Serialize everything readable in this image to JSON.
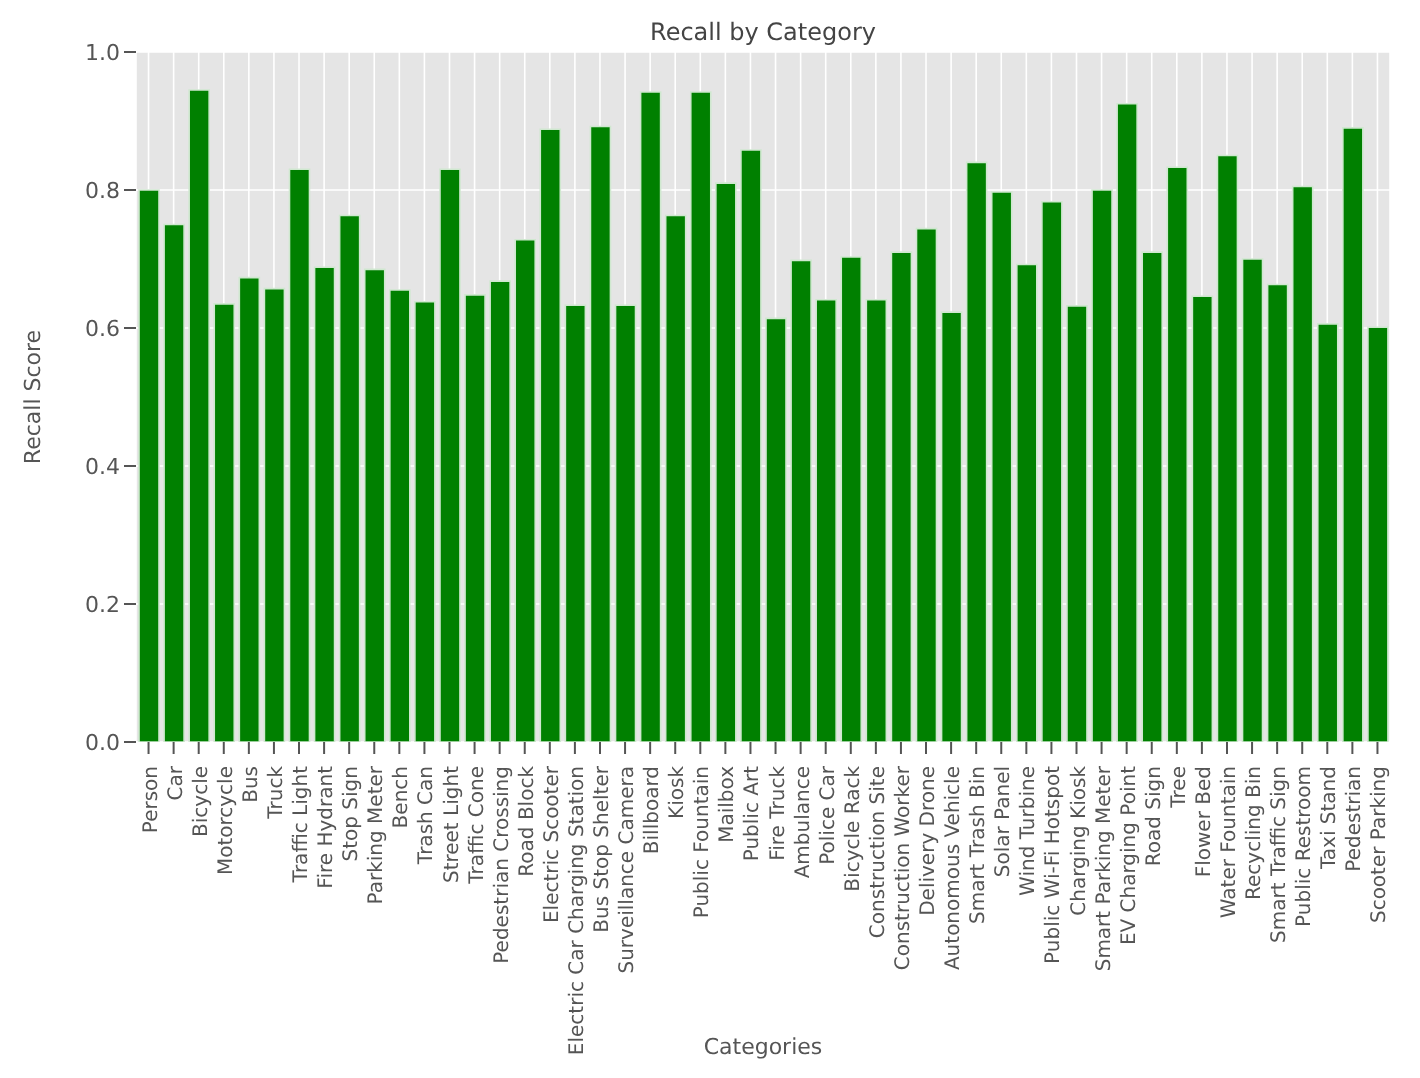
{
  "chart_data": {
    "type": "bar",
    "title": "Recall by Category",
    "xlabel": "Categories",
    "ylabel": "Recall Score",
    "categories": [
      "Person",
      "Car",
      "Bicycle",
      "Motorcycle",
      "Bus",
      "Truck",
      "Traffic Light",
      "Fire Hydrant",
      "Stop Sign",
      "Parking Meter",
      "Bench",
      "Trash Can",
      "Street Light",
      "Traffic Cone",
      "Pedestrian Crossing",
      "Road Block",
      "Electric Scooter",
      "Electric Car Charging Station",
      "Bus Stop Shelter",
      "Surveillance Camera",
      "Billboard",
      "Kiosk",
      "Public Fountain",
      "Mailbox",
      "Public Art",
      "Fire Truck",
      "Ambulance",
      "Police Car",
      "Bicycle Rack",
      "Construction Site",
      "Construction Worker",
      "Delivery Drone",
      "Autonomous Vehicle",
      "Smart Trash Bin",
      "Solar Panel",
      "Wind Turbine",
      "Public Wi-Fi Hotspot",
      "Charging Kiosk",
      "Smart Parking Meter",
      "EV Charging Point",
      "Road Sign",
      "Tree",
      "Flower Bed",
      "Water Fountain",
      "Recycling Bin",
      "Smart Traffic Sign",
      "Public Restroom",
      "Taxi Stand",
      "Pedestrian",
      "Scooter Parking"
    ],
    "values": [
      0.8,
      0.75,
      0.945,
      0.635,
      0.673,
      0.657,
      0.83,
      0.688,
      0.763,
      0.685,
      0.655,
      0.638,
      0.83,
      0.648,
      0.668,
      0.728,
      0.888,
      0.633,
      0.892,
      0.633,
      0.942,
      0.763,
      0.942,
      0.81,
      0.858,
      0.614,
      0.698,
      0.641,
      0.703,
      0.641,
      0.71,
      0.744,
      0.623,
      0.84,
      0.797,
      0.692,
      0.783,
      0.632,
      0.8,
      0.925,
      0.71,
      0.833,
      0.646,
      0.85,
      0.7,
      0.663,
      0.805,
      0.606,
      0.89,
      0.601
    ],
    "color": "#008000",
    "ylim": [
      0,
      1
    ],
    "yticks": [
      {
        "value": 0,
        "label": "0.0"
      },
      {
        "value": 0.2,
        "label": "0.2"
      },
      {
        "value": 0.4,
        "label": "0.4"
      },
      {
        "value": 0.6,
        "label": "0.6"
      },
      {
        "value": 0.8,
        "label": "0.8"
      },
      {
        "value": 1,
        "label": "1.0"
      }
    ],
    "grid": true
  }
}
